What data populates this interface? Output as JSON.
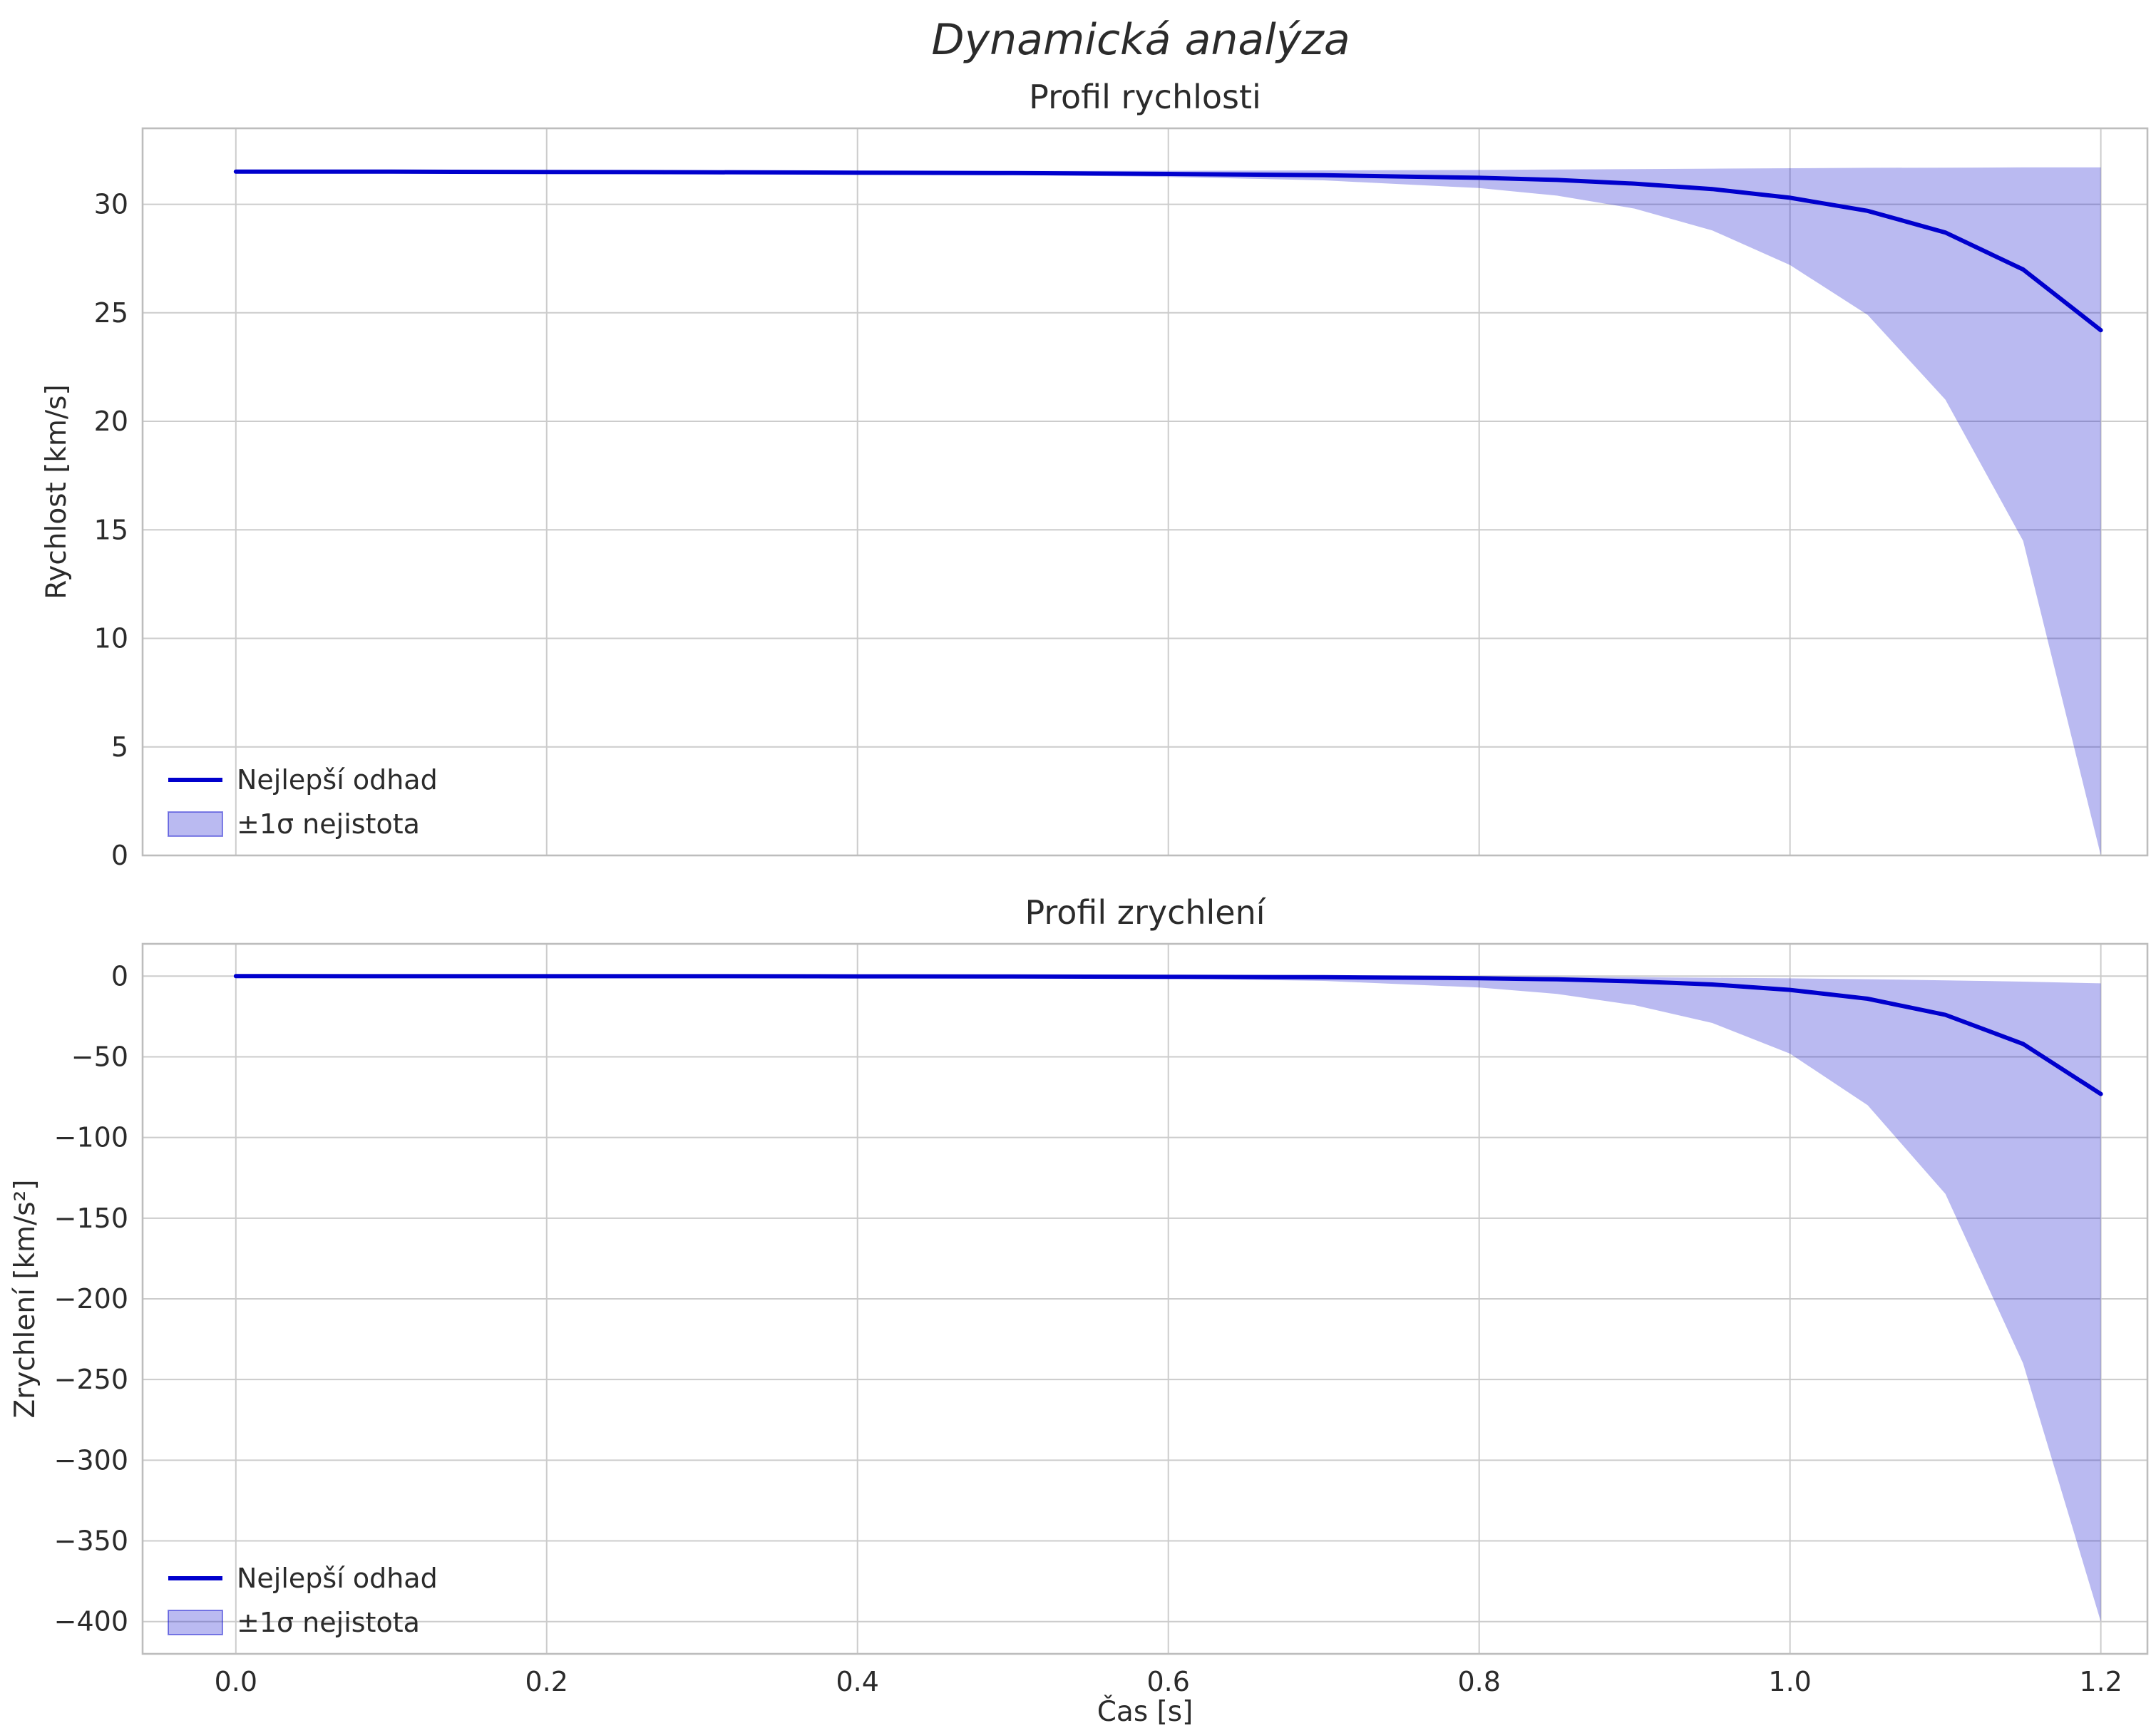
{
  "suptitle": "Dynamická analýza",
  "xlabel": "Čas [s]",
  "legend": {
    "line_label": "Nejlepší odhad",
    "band_label": "±1σ nejistota"
  },
  "colors": {
    "line": "#0000cd",
    "band_opacity": 0.27,
    "grid": "#cccccc",
    "spine": "#bdbdbd",
    "text": "#2b2b2b"
  },
  "chart_data": [
    {
      "type": "line",
      "title": "Profil rychlosti",
      "ylabel": "Rychlost [km/s]",
      "xlabel": "Čas [s]",
      "grid": true,
      "legend_position": "lower left",
      "xlim": [
        -0.06,
        1.23
      ],
      "ylim": [
        0,
        33.5
      ],
      "xticks": [
        0.0,
        0.2,
        0.4,
        0.6,
        0.8,
        1.0,
        1.2
      ],
      "yticks": [
        0,
        5,
        10,
        15,
        20,
        25,
        30
      ],
      "x": [
        0.0,
        0.1,
        0.2,
        0.3,
        0.4,
        0.5,
        0.6,
        0.7,
        0.8,
        0.85,
        0.9,
        0.95,
        1.0,
        1.05,
        1.1,
        1.15,
        1.2
      ],
      "series": [
        {
          "name": "Nejlepší odhad",
          "role": "best",
          "values": [
            31.5,
            31.5,
            31.49,
            31.48,
            31.46,
            31.44,
            31.4,
            31.34,
            31.22,
            31.12,
            30.95,
            30.7,
            30.3,
            29.7,
            28.7,
            27.0,
            24.2
          ]
        },
        {
          "name": "+1σ nejistota",
          "role": "upper",
          "values": [
            31.5,
            31.5,
            31.5,
            31.51,
            31.52,
            31.53,
            31.54,
            31.56,
            31.58,
            31.6,
            31.62,
            31.64,
            31.66,
            31.68,
            31.69,
            31.7,
            31.7
          ]
        },
        {
          "name": "−1σ nejistota",
          "role": "lower",
          "values": [
            31.5,
            31.5,
            31.48,
            31.45,
            31.41,
            31.35,
            31.26,
            31.1,
            30.75,
            30.4,
            29.8,
            28.8,
            27.2,
            24.9,
            21.0,
            14.5,
            0.0
          ]
        }
      ]
    },
    {
      "type": "line",
      "title": "Profil zrychlení",
      "ylabel": "Zrychlení [km/s²]",
      "xlabel": "Čas [s]",
      "grid": true,
      "legend_position": "lower left",
      "xlim": [
        -0.06,
        1.23
      ],
      "ylim": [
        -420,
        20
      ],
      "xticks": [
        0.0,
        0.2,
        0.4,
        0.6,
        0.8,
        1.0,
        1.2
      ],
      "yticks": [
        0,
        -50,
        -100,
        -150,
        -200,
        -250,
        -300,
        -350,
        -400
      ],
      "x": [
        0.0,
        0.1,
        0.2,
        0.3,
        0.4,
        0.5,
        0.6,
        0.7,
        0.8,
        0.85,
        0.9,
        0.95,
        1.0,
        1.05,
        1.1,
        1.15,
        1.2
      ],
      "series": [
        {
          "name": "Nejlepší odhad",
          "role": "best",
          "values": [
            0,
            -0.02,
            -0.05,
            -0.1,
            -0.16,
            -0.25,
            -0.4,
            -0.7,
            -1.3,
            -2.0,
            -3.2,
            -5.2,
            -8.5,
            -14,
            -24,
            -42,
            -73
          ]
        },
        {
          "name": "+1σ nejistota",
          "role": "upper",
          "values": [
            0,
            0,
            0,
            -0.02,
            -0.04,
            -0.07,
            -0.12,
            -0.2,
            -0.35,
            -0.5,
            -0.7,
            -1.0,
            -1.4,
            -1.9,
            -2.6,
            -3.4,
            -4.5
          ]
        },
        {
          "name": "−1σ nejistota",
          "role": "lower",
          "values": [
            0,
            -0.05,
            -0.12,
            -0.25,
            -0.45,
            -0.8,
            -1.5,
            -3.0,
            -7.0,
            -11,
            -18,
            -29,
            -48,
            -80,
            -135,
            -240,
            -400
          ]
        }
      ]
    }
  ]
}
